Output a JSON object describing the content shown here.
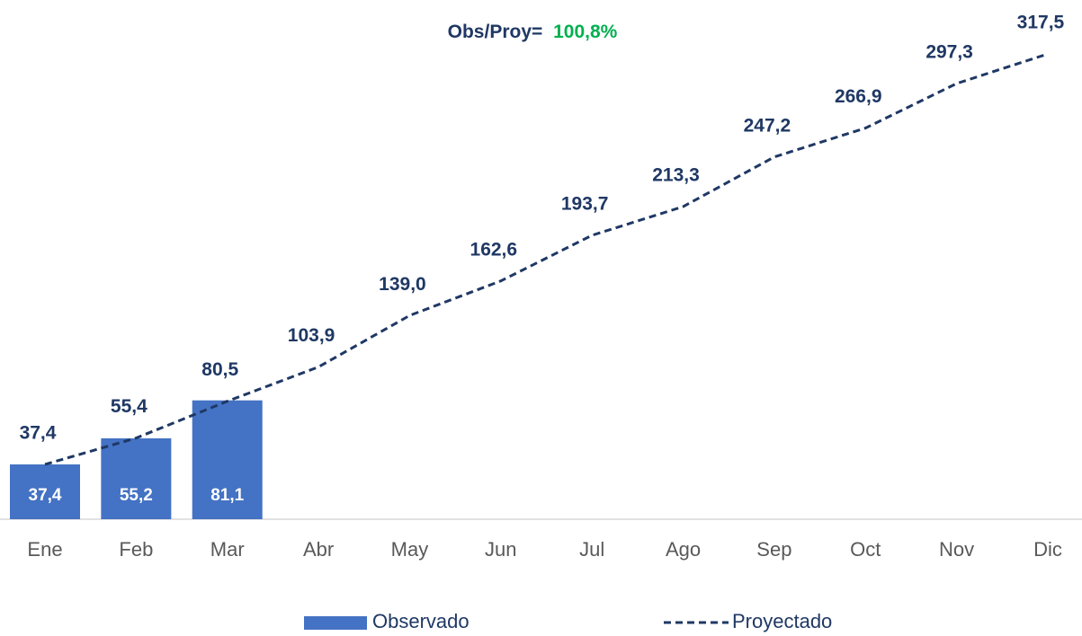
{
  "chart_data": {
    "type": "bar_line",
    "annotation": {
      "text": "Obs/Proy=",
      "text_color": "#1f3864",
      "value_label": "100,8%",
      "value_color": "#00b050"
    },
    "categories": [
      "Ene",
      "Feb",
      "Mar",
      "Abr",
      "May",
      "Jun",
      "Jul",
      "Ago",
      "Sep",
      "Oct",
      "Nov",
      "Dic"
    ],
    "ylim": [
      0,
      350
    ],
    "series": [
      {
        "name": "Observado",
        "type": "bar",
        "color": "#4472c4",
        "values": [
          37.4,
          55.2,
          81.1,
          null,
          null,
          null,
          null,
          null,
          null,
          null,
          null,
          null
        ],
        "value_labels": [
          "37,4",
          "55,2",
          "81,1",
          null,
          null,
          null,
          null,
          null,
          null,
          null,
          null,
          null
        ]
      },
      {
        "name": "Proyectado",
        "type": "line",
        "color": "#1f3864",
        "dashed": true,
        "values": [
          37.4,
          55.4,
          80.5,
          103.9,
          139.0,
          162.6,
          193.7,
          213.3,
          247.2,
          266.9,
          297.3,
          317.5
        ],
        "value_labels": [
          "37,4",
          "55,4",
          "80,5",
          "103,9",
          "139,0",
          "162,6",
          "193,7",
          "213,3",
          "247,2",
          "266,9",
          "297,3",
          "317,5"
        ]
      }
    ]
  }
}
